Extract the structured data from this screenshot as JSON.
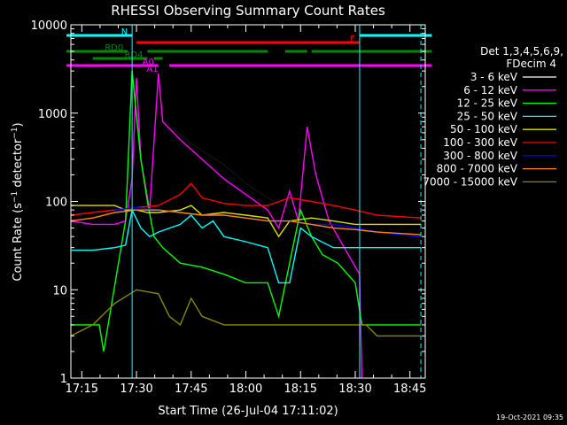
{
  "chart_data": {
    "type": "line",
    "title": "RHESSI Observing Summary Count Rates",
    "xlabel": "Start Time (26-Jul-04 17:11:02)",
    "ylabel": "Count Rate (s⁻¹ detector⁻¹)",
    "ylabel_main": "Count Rate (s",
    "ylabel_mid": " detector",
    "ylabel_end": ")",
    "ylabel_sup": "−1",
    "yscale": "log",
    "ylim": [
      1,
      10000
    ],
    "xlim_minutes": [
      17.2,
      18.82
    ],
    "x_ticks": [
      "17:15",
      "17:30",
      "17:45",
      "18:00",
      "18:15",
      "18:30",
      "18:45"
    ],
    "y_ticks": [
      "1",
      "10",
      "100",
      "1000",
      "10000"
    ],
    "timestamp": "19-Oct-2021 09:35",
    "legend": {
      "header1": "Det 1,3,4,5,6,9,",
      "header2": "FDecim 4",
      "entries": [
        {
          "label": "3 - 6 keV",
          "color": "#000000"
        },
        {
          "label": "6 - 12 keV",
          "color": "#ff00ff"
        },
        {
          "label": "12 - 25 keV",
          "color": "#00ff00"
        },
        {
          "label": "25 - 50 keV",
          "color": "#00ffff"
        },
        {
          "label": "50 - 100 keV",
          "color": "#dddd00"
        },
        {
          "label": "100 - 300 keV",
          "color": "#ff0000"
        },
        {
          "label": "300 - 800 keV",
          "color": "#0000ff"
        },
        {
          "label": "800 - 7000 keV",
          "color": "#ff8800"
        },
        {
          "label": "7000 - 15000 keV",
          "color": "#888800"
        }
      ]
    },
    "flags": [
      {
        "label": "N",
        "color": "#00ffff",
        "segments": [
          [
            17.18,
            17.48
          ],
          [
            18.52,
            18.85
          ]
        ]
      },
      {
        "label": "F",
        "color": "#ff0000",
        "segments": [
          [
            17.5,
            18.52
          ]
        ]
      },
      {
        "label": "RD0",
        "color": "#008800",
        "segments": [
          [
            17.18,
            17.46
          ],
          [
            17.55,
            18.1
          ],
          [
            18.18,
            18.28
          ],
          [
            18.3,
            18.85
          ]
        ]
      },
      {
        "label": "RD4",
        "color": "#008800",
        "segments": [
          [
            17.3,
            17.55
          ],
          [
            17.58,
            17.62
          ]
        ]
      },
      {
        "label": "A0",
        "color": "#ff00ff",
        "segments": [
          [
            17.18,
            17.6
          ],
          [
            17.65,
            18.85
          ]
        ]
      },
      {
        "label": "A1",
        "color": "#ff00ff",
        "segments": []
      }
    ],
    "vlines": [
      {
        "x": 17.48,
        "color": "#00ffff",
        "style": "solid"
      },
      {
        "x": 18.52,
        "color": "#00ffff",
        "style": "solid"
      },
      {
        "x": 18.8,
        "color": "#00ffff",
        "style": "dashed"
      }
    ],
    "series": [
      {
        "name": "3 - 6 keV",
        "color": "#000000",
        "points": [
          [
            17.62,
            850
          ],
          [
            17.75,
            450
          ],
          [
            17.9,
            260
          ],
          [
            18.0,
            160
          ],
          [
            18.1,
            110
          ],
          [
            18.2,
            80
          ],
          [
            18.28,
            60
          ],
          [
            18.35,
            45
          ],
          [
            18.42,
            40
          ]
        ]
      },
      {
        "name": "6 - 12 keV",
        "color": "#ff00ff",
        "points": [
          [
            17.2,
            60
          ],
          [
            17.3,
            55
          ],
          [
            17.4,
            55
          ],
          [
            17.45,
            60
          ],
          [
            17.48,
            180
          ],
          [
            17.5,
            2500
          ],
          [
            17.52,
            300
          ],
          [
            17.56,
            80
          ],
          [
            17.6,
            2800
          ],
          [
            17.62,
            800
          ],
          [
            17.7,
            500
          ],
          [
            17.8,
            300
          ],
          [
            17.9,
            180
          ],
          [
            18.0,
            120
          ],
          [
            18.1,
            80
          ],
          [
            18.15,
            50
          ],
          [
            18.2,
            130
          ],
          [
            18.24,
            60
          ],
          [
            18.28,
            700
          ],
          [
            18.32,
            200
          ],
          [
            18.38,
            60
          ],
          [
            18.45,
            30
          ],
          [
            18.52,
            15
          ],
          [
            18.53,
            1
          ]
        ]
      },
      {
        "name": "12 - 25 keV",
        "color": "#00ff00",
        "points": [
          [
            17.2,
            4
          ],
          [
            17.33,
            4
          ],
          [
            17.35,
            2
          ],
          [
            17.45,
            60
          ],
          [
            17.48,
            3000
          ],
          [
            17.52,
            300
          ],
          [
            17.55,
            100
          ],
          [
            17.58,
            40
          ],
          [
            17.62,
            30
          ],
          [
            17.7,
            20
          ],
          [
            17.8,
            18
          ],
          [
            17.9,
            15
          ],
          [
            18.0,
            12
          ],
          [
            18.1,
            12
          ],
          [
            18.15,
            5
          ],
          [
            18.2,
            20
          ],
          [
            18.25,
            80
          ],
          [
            18.3,
            40
          ],
          [
            18.35,
            25
          ],
          [
            18.42,
            20
          ],
          [
            18.5,
            12
          ],
          [
            18.53,
            4
          ],
          [
            18.8,
            4
          ]
        ]
      },
      {
        "name": "25 - 50 keV",
        "color": "#00ffff",
        "points": [
          [
            17.2,
            28
          ],
          [
            17.3,
            28
          ],
          [
            17.4,
            30
          ],
          [
            17.45,
            32
          ],
          [
            17.48,
            80
          ],
          [
            17.52,
            50
          ],
          [
            17.56,
            40
          ],
          [
            17.6,
            45
          ],
          [
            17.7,
            55
          ],
          [
            17.75,
            70
          ],
          [
            17.8,
            50
          ],
          [
            17.85,
            60
          ],
          [
            17.9,
            40
          ],
          [
            18.0,
            35
          ],
          [
            18.1,
            30
          ],
          [
            18.15,
            12
          ],
          [
            18.2,
            12
          ],
          [
            18.25,
            50
          ],
          [
            18.3,
            40
          ],
          [
            18.4,
            30
          ],
          [
            18.5,
            30
          ],
          [
            18.55,
            30
          ],
          [
            18.8,
            30
          ]
        ]
      },
      {
        "name": "50 - 100 keV",
        "color": "#dddd00",
        "points": [
          [
            17.2,
            90
          ],
          [
            17.3,
            90
          ],
          [
            17.4,
            90
          ],
          [
            17.45,
            80
          ],
          [
            17.5,
            80
          ],
          [
            17.55,
            75
          ],
          [
            17.6,
            75
          ],
          [
            17.7,
            80
          ],
          [
            17.75,
            90
          ],
          [
            17.8,
            70
          ],
          [
            17.9,
            75
          ],
          [
            18.0,
            70
          ],
          [
            18.1,
            65
          ],
          [
            18.15,
            40
          ],
          [
            18.2,
            60
          ],
          [
            18.3,
            65
          ],
          [
            18.4,
            60
          ],
          [
            18.5,
            55
          ],
          [
            18.8,
            55
          ]
        ]
      },
      {
        "name": "100 - 300 keV",
        "color": "#ff0000",
        "points": [
          [
            17.2,
            70
          ],
          [
            17.3,
            75
          ],
          [
            17.4,
            80
          ],
          [
            17.5,
            85
          ],
          [
            17.6,
            90
          ],
          [
            17.7,
            120
          ],
          [
            17.75,
            160
          ],
          [
            17.8,
            110
          ],
          [
            17.9,
            95
          ],
          [
            18.0,
            90
          ],
          [
            18.1,
            90
          ],
          [
            18.2,
            110
          ],
          [
            18.3,
            100
          ],
          [
            18.4,
            90
          ],
          [
            18.5,
            80
          ],
          [
            18.6,
            70
          ],
          [
            18.8,
            65
          ]
        ]
      },
      {
        "name": "300 - 800 keV",
        "color": "#0000ff",
        "points": [
          [
            17.4,
            80
          ],
          [
            17.5,
            85
          ],
          [
            17.6,
            80
          ],
          [
            17.7,
            75
          ],
          [
            17.8,
            70
          ],
          [
            17.9,
            70
          ],
          [
            18.0,
            65
          ],
          [
            18.1,
            60
          ],
          [
            18.2,
            60
          ],
          [
            18.3,
            55
          ],
          [
            18.4,
            55
          ],
          [
            18.5,
            50
          ],
          [
            18.6,
            45
          ],
          [
            18.8,
            40
          ]
        ]
      },
      {
        "name": "800 - 7000 keV",
        "color": "#ff8800",
        "points": [
          [
            17.2,
            60
          ],
          [
            17.3,
            65
          ],
          [
            17.4,
            75
          ],
          [
            17.5,
            80
          ],
          [
            17.6,
            80
          ],
          [
            17.7,
            75
          ],
          [
            17.8,
            70
          ],
          [
            17.9,
            70
          ],
          [
            18.0,
            65
          ],
          [
            18.1,
            60
          ],
          [
            18.2,
            60
          ],
          [
            18.3,
            55
          ],
          [
            18.4,
            50
          ],
          [
            18.5,
            48
          ],
          [
            18.6,
            45
          ],
          [
            18.8,
            42
          ]
        ]
      },
      {
        "name": "7000 - 15000 keV",
        "color": "#888800",
        "points": [
          [
            17.2,
            3
          ],
          [
            17.3,
            4
          ],
          [
            17.4,
            7
          ],
          [
            17.5,
            10
          ],
          [
            17.6,
            9
          ],
          [
            17.65,
            5
          ],
          [
            17.7,
            4
          ],
          [
            17.75,
            8
          ],
          [
            17.8,
            5
          ],
          [
            17.9,
            4
          ],
          [
            18.0,
            4
          ],
          [
            18.1,
            4
          ],
          [
            18.2,
            4
          ],
          [
            18.3,
            4
          ],
          [
            18.4,
            4
          ],
          [
            18.5,
            4
          ],
          [
            18.55,
            4
          ],
          [
            18.6,
            3
          ],
          [
            18.8,
            3
          ]
        ]
      }
    ]
  }
}
